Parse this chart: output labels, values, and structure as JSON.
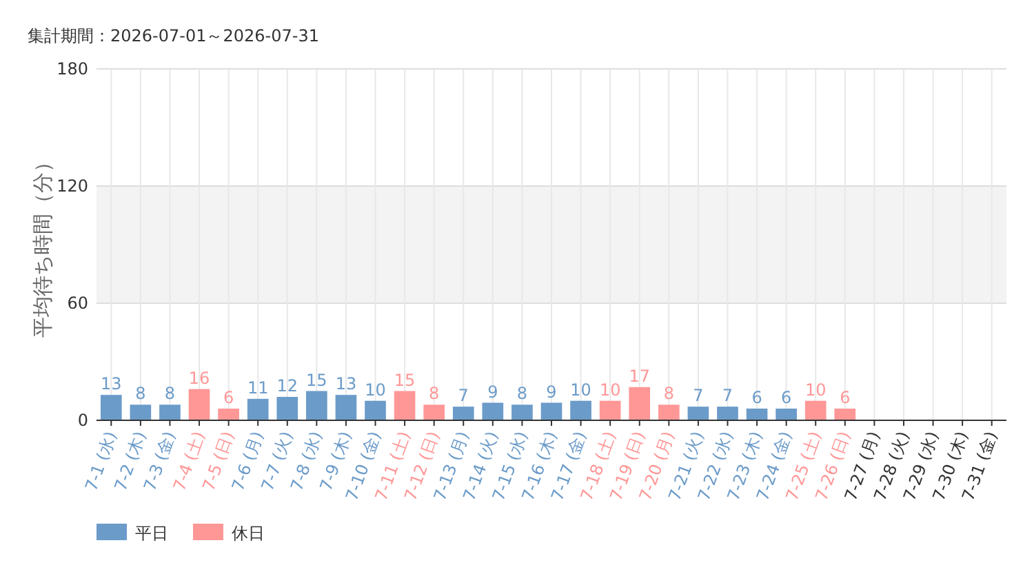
{
  "chart_data": {
    "type": "bar",
    "title": "集計期間：2026-07-01～2026-07-31",
    "ylabel": "平均待ち時間（分）",
    "categories": [
      "7-1 (水)",
      "7-2 (木)",
      "7-3 (金)",
      "7-4 (土)",
      "7-5 (日)",
      "7-6 (月)",
      "7-7 (火)",
      "7-8 (水)",
      "7-9 (木)",
      "7-10 (金)",
      "7-11 (土)",
      "7-12 (日)",
      "7-13 (月)",
      "7-14 (火)",
      "7-15 (水)",
      "7-16 (木)",
      "7-17 (金)",
      "7-18 (土)",
      "7-19 (日)",
      "7-20 (月)",
      "7-21 (火)",
      "7-22 (水)",
      "7-23 (木)",
      "7-24 (金)",
      "7-25 (土)",
      "7-26 (日)",
      "7-27 (月)",
      "7-28 (火)",
      "7-29 (水)",
      "7-30 (木)",
      "7-31 (金)"
    ],
    "series": [
      {
        "name": "平日",
        "color": "#6b9bc9",
        "values": [
          13,
          8,
          8,
          null,
          null,
          11,
          12,
          15,
          13,
          10,
          null,
          null,
          7,
          9,
          8,
          9,
          10,
          null,
          null,
          null,
          7,
          7,
          6,
          6,
          null,
          null,
          null,
          null,
          null,
          null,
          null
        ]
      },
      {
        "name": "休日",
        "color": "#ff9797",
        "values": [
          null,
          null,
          null,
          16,
          6,
          null,
          null,
          null,
          null,
          null,
          15,
          8,
          null,
          null,
          null,
          null,
          null,
          10,
          17,
          8,
          null,
          null,
          null,
          null,
          10,
          6,
          null,
          null,
          null,
          null,
          null
        ]
      }
    ],
    "ylim": [
      0,
      180
    ],
    "yticks": [
      0,
      60,
      120,
      180
    ],
    "grid": true,
    "legend": "bottom left",
    "data_labels": true,
    "bands": [
      {
        "axis": "y",
        "from": 60,
        "to": 120,
        "color": "#f3f3f3"
      }
    ]
  }
}
